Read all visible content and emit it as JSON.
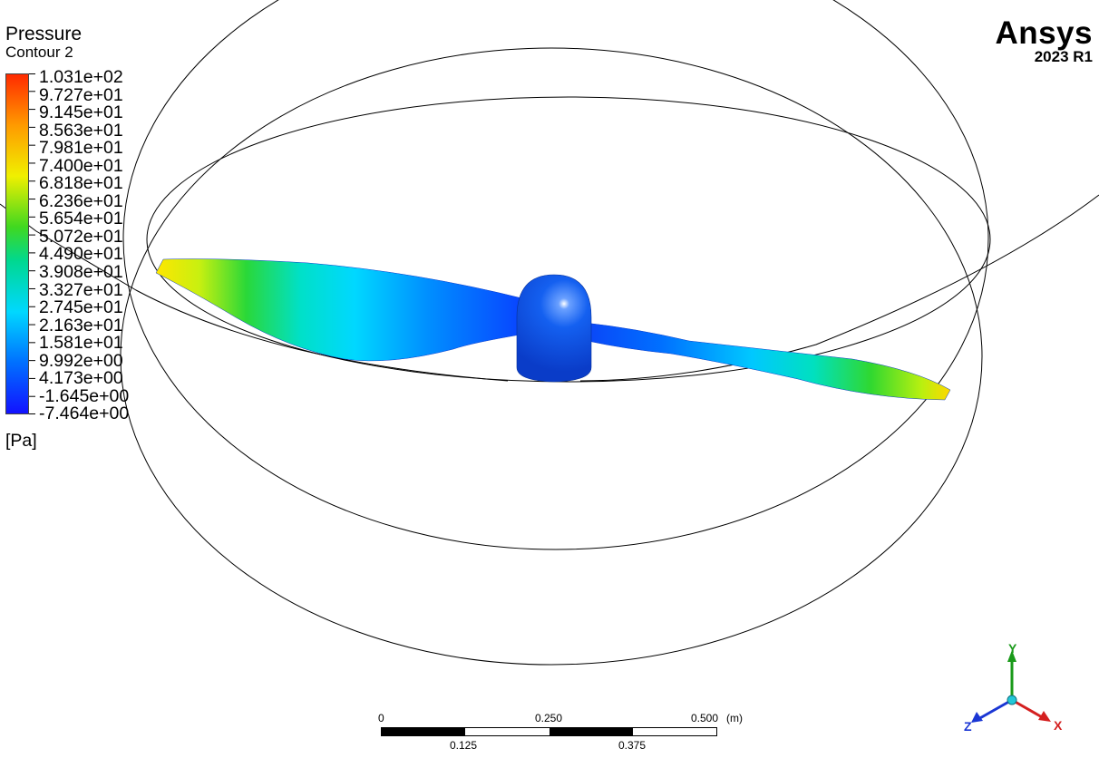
{
  "legend": {
    "title": "Pressure",
    "subtitle": "Contour 2",
    "unit": "[Pa]",
    "levels": [
      "1.031e+02",
      "9.727e+01",
      "9.145e+01",
      "8.563e+01",
      "7.981e+01",
      "7.400e+01",
      "6.818e+01",
      "6.236e+01",
      "5.654e+01",
      "5.072e+01",
      "4.490e+01",
      "3.908e+01",
      "3.327e+01",
      "2.745e+01",
      "2.163e+01",
      "1.581e+01",
      "9.992e+00",
      "4.173e+00",
      "-1.645e+00",
      "-7.464e+00"
    ]
  },
  "logo": {
    "brand": "Ansys",
    "version": "2023 R1"
  },
  "scale_bar": {
    "unit": "(m)",
    "top_labels": [
      "0",
      "0.250",
      "0.500"
    ],
    "bottom_labels": [
      "0.125",
      "0.375"
    ]
  },
  "axes": {
    "x": "X",
    "y": "Y",
    "z": "Z",
    "x_color": "#d42020",
    "y_color": "#1a9a1a",
    "z_color": "#1a36d4"
  },
  "colors": {
    "min": "#1212ff",
    "low": "#00c8ff",
    "mid": "#14d814",
    "high": "#ffff00",
    "max": "#ff2a00"
  }
}
